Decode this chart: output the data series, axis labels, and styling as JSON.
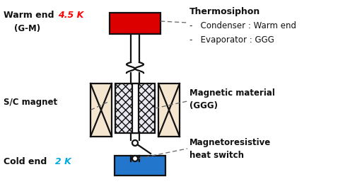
{
  "bg_color": "#ffffff",
  "pipe_color": "#111111",
  "magnet_color": "#f5e6d0",
  "red_color": "#dd0000",
  "blue_color": "#2277cc",
  "labels": {
    "warm_end_text": "Warm end ",
    "warm_end_val": "4.5 K",
    "warm_end_sub": "(G-M)",
    "cold_end_text": "Cold end ",
    "cold_end_val": "2 K",
    "sc_magnet": "S/C magnet",
    "thermo_title": "Thermosiphon",
    "thermo_1": "-   Condenser : Warm end",
    "thermo_2": "-   Evaporator : GGG",
    "mag_mat": "Magnetic material",
    "mag_mat_sub": "(GGG)",
    "mag_switch": "Magnetoresistive",
    "mag_switch2": "heat switch"
  },
  "colors": {
    "red_text": "#ff0000",
    "cyan_text": "#00aadd",
    "black_text": "#111111"
  }
}
